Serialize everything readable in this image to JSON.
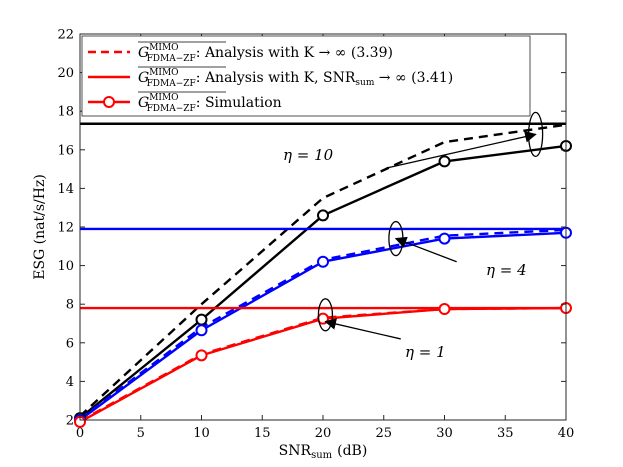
{
  "chart_data": {
    "type": "line",
    "title": "",
    "xlabel": "SNR",
    "xlabel_sub": "sum",
    "xlabel_unit": "(dB)",
    "ylabel": "ESG (nat/s/Hz)",
    "xlim": [
      0,
      40
    ],
    "ylim": [
      2,
      22
    ],
    "xticks": [
      0,
      5,
      10,
      15,
      20,
      25,
      30,
      35,
      40
    ],
    "yticks": [
      2,
      4,
      6,
      8,
      10,
      12,
      14,
      16,
      18,
      20,
      22
    ],
    "grid": false,
    "legend_position": "top-left",
    "legend": [
      {
        "symbol": "G",
        "sup": "MIMO",
        "sub": "FDMA−ZF",
        "text": ": Analysis with K → ∞ (3.39)",
        "style": "dashed"
      },
      {
        "symbol": "G",
        "sup": "MIMO",
        "sub": "FDMA−ZF",
        "text": ": Analysis with K, SNR",
        "text_sub": "sum",
        "text_tail": " → ∞ (3.41)",
        "style": "solid"
      },
      {
        "symbol": "G",
        "sup": "MIMO",
        "sub": "FDMA−ZF",
        "text": ": Simulation",
        "style": "solid-circle"
      }
    ],
    "series": [
      {
        "name": "eta=10 analysis K→∞",
        "color": "#000000",
        "style": "dashed",
        "x": [
          0,
          10,
          20,
          30,
          40
        ],
        "y": [
          2.2,
          8.0,
          13.5,
          16.4,
          17.3
        ]
      },
      {
        "name": "eta=10 asymptote",
        "color": "#000000",
        "style": "hline",
        "y": 17.35
      },
      {
        "name": "eta=10 simulation",
        "color": "#000000",
        "style": "solid-circle",
        "x": [
          0,
          10,
          20,
          30,
          40
        ],
        "y": [
          2.1,
          7.2,
          12.6,
          15.4,
          16.2
        ]
      },
      {
        "name": "eta=4 analysis K→∞",
        "color": "#0000ff",
        "style": "dashed",
        "x": [
          0,
          10,
          20,
          30,
          40
        ],
        "y": [
          2.05,
          6.8,
          10.3,
          11.55,
          11.85
        ]
      },
      {
        "name": "eta=4 asymptote",
        "color": "#0000ff",
        "style": "hline",
        "y": 11.9
      },
      {
        "name": "eta=4 simulation",
        "color": "#0000ff",
        "style": "solid-circle",
        "x": [
          0,
          10,
          20,
          30,
          40
        ],
        "y": [
          2.0,
          6.65,
          10.2,
          11.4,
          11.7
        ]
      },
      {
        "name": "eta=1 analysis K→∞",
        "color": "#ff0000",
        "style": "dashed",
        "x": [
          0,
          10,
          20,
          30,
          40
        ],
        "y": [
          1.95,
          5.4,
          7.3,
          7.75,
          7.8
        ]
      },
      {
        "name": "eta=1 asymptote",
        "color": "#ff0000",
        "style": "hline",
        "y": 7.8
      },
      {
        "name": "eta=1 simulation",
        "color": "#ff0000",
        "style": "solid-circle",
        "x": [
          0,
          10,
          20,
          30,
          40
        ],
        "y": [
          1.9,
          5.35,
          7.25,
          7.75,
          7.8
        ]
      }
    ],
    "annotations": [
      {
        "label": "η = 10",
        "target": [
          37.5,
          16.8
        ],
        "from": [
          25.2,
          15.05
        ]
      },
      {
        "label": "η = 4",
        "target": [
          26.0,
          11.4
        ],
        "from": [
          31.0,
          10.2
        ]
      },
      {
        "label": "η = 1",
        "target": [
          20.2,
          7.1
        ],
        "from": [
          26.4,
          6.2
        ]
      }
    ]
  }
}
